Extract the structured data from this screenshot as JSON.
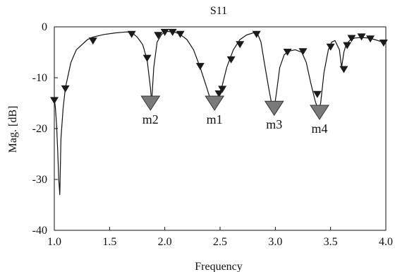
{
  "chart_data": {
    "type": "line",
    "title": "S11",
    "xlabel": "Frequency",
    "ylabel": "Mag. [dB]",
    "xlim": [
      1.0,
      4.0
    ],
    "ylim": [
      -40,
      0
    ],
    "xticks": [
      1.0,
      1.5,
      2.0,
      2.5,
      3.0,
      3.5,
      4.0
    ],
    "xtick_labels": [
      "1.0",
      "1.5",
      "2.0",
      "2.5",
      "3.0",
      "3.5",
      "4.0"
    ],
    "yticks": [
      0,
      -10,
      -20,
      -30,
      -40
    ],
    "ytick_labels": [
      "0",
      "-10",
      "-20",
      "-30",
      "-40"
    ],
    "grid": false,
    "colors": {
      "line": "#111111",
      "small_marker": "#1a1a1a",
      "big_marker": "#7a7a7a"
    },
    "series": [
      {
        "x": [
          1.0,
          1.01,
          1.02,
          1.03,
          1.04,
          1.05,
          1.06,
          1.08,
          1.1,
          1.15,
          1.2,
          1.3,
          1.35,
          1.45,
          1.55,
          1.65,
          1.7,
          1.75,
          1.8,
          1.84,
          1.87,
          1.88,
          1.9,
          1.93,
          1.97,
          2.0,
          2.03,
          2.06,
          2.1,
          2.14,
          2.2,
          2.26,
          2.32,
          2.38,
          2.42,
          2.44,
          2.46,
          2.49,
          2.52,
          2.56,
          2.62,
          2.68,
          2.74,
          2.8,
          2.84,
          2.87,
          2.9,
          2.94,
          2.97,
          2.99,
          3.01,
          3.04,
          3.08,
          3.12,
          3.18,
          3.24,
          3.28,
          3.32,
          3.36,
          3.39,
          3.41,
          3.44,
          3.48,
          3.51,
          3.54,
          3.58,
          3.6,
          3.62,
          3.64,
          3.68,
          3.72,
          3.78,
          3.84,
          3.9,
          3.96,
          4.0
        ],
        "y": [
          -14,
          -16,
          -19,
          -24,
          -30,
          -33,
          -22,
          -16,
          -12,
          -7,
          -4.5,
          -2.5,
          -2.0,
          -1.5,
          -1.2,
          -1.0,
          -1.1,
          -2.0,
          -3.5,
          -6.5,
          -12.0,
          -15.0,
          -8.0,
          -3.0,
          -1.5,
          -1.0,
          -0.9,
          -1.0,
          -1.1,
          -1.5,
          -2.5,
          -4.5,
          -8.0,
          -12.0,
          -14.8,
          -15.0,
          -14.5,
          -13.5,
          -11.5,
          -8.0,
          -4.5,
          -2.5,
          -1.6,
          -1.2,
          -1.4,
          -3.0,
          -7.0,
          -12.0,
          -15.5,
          -16.0,
          -13.0,
          -8.0,
          -5.5,
          -4.8,
          -4.5,
          -5.0,
          -7.0,
          -11.0,
          -14.5,
          -16.5,
          -15.0,
          -9.0,
          -4.5,
          -3.0,
          -2.7,
          -4.5,
          -8.0,
          -5.0,
          -3.5,
          -2.5,
          -2.2,
          -2.1,
          -2.2,
          -2.5,
          -2.9,
          -3.2
        ]
      }
    ],
    "small_markers": [
      {
        "x": 1.0,
        "y": -14.5
      },
      {
        "x": 1.1,
        "y": -12.2
      },
      {
        "x": 1.35,
        "y": -2.8
      },
      {
        "x": 1.7,
        "y": -1.5
      },
      {
        "x": 1.84,
        "y": -6.2
      },
      {
        "x": 1.94,
        "y": -1.7
      },
      {
        "x": 2.0,
        "y": -1.1
      },
      {
        "x": 2.07,
        "y": -1.1
      },
      {
        "x": 2.14,
        "y": -1.5
      },
      {
        "x": 2.32,
        "y": -7.8
      },
      {
        "x": 2.49,
        "y": -13.2
      },
      {
        "x": 2.52,
        "y": -12.3
      },
      {
        "x": 2.6,
        "y": -6.5
      },
      {
        "x": 2.68,
        "y": -3.5
      },
      {
        "x": 2.83,
        "y": -1.5
      },
      {
        "x": 3.11,
        "y": -5.0
      },
      {
        "x": 3.25,
        "y": -4.9
      },
      {
        "x": 3.38,
        "y": -13.3
      },
      {
        "x": 3.5,
        "y": -4.0
      },
      {
        "x": 3.62,
        "y": -8.4
      },
      {
        "x": 3.65,
        "y": -3.7
      },
      {
        "x": 3.69,
        "y": -2.3
      },
      {
        "x": 3.78,
        "y": -2.0
      },
      {
        "x": 3.86,
        "y": -2.4
      },
      {
        "x": 3.98,
        "y": -3.2
      }
    ],
    "markers": [
      {
        "label": "m2",
        "x": 1.87,
        "y": -15.0
      },
      {
        "label": "m1",
        "x": 2.45,
        "y": -15.0
      },
      {
        "label": "m3",
        "x": 2.99,
        "y": -16.0
      },
      {
        "label": "m4",
        "x": 3.4,
        "y": -16.8
      }
    ]
  }
}
